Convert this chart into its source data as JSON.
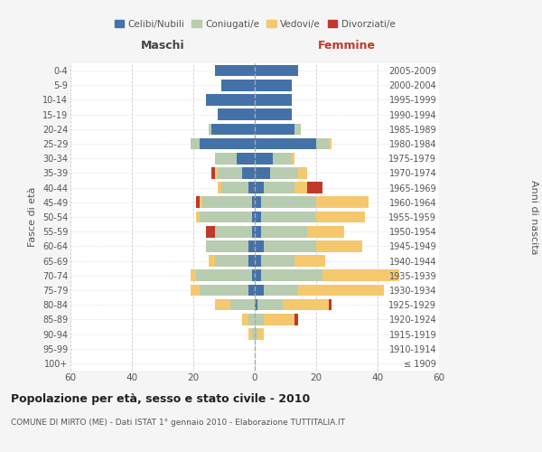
{
  "age_groups": [
    "100+",
    "95-99",
    "90-94",
    "85-89",
    "80-84",
    "75-79",
    "70-74",
    "65-69",
    "60-64",
    "55-59",
    "50-54",
    "45-49",
    "40-44",
    "35-39",
    "30-34",
    "25-29",
    "20-24",
    "15-19",
    "10-14",
    "5-9",
    "0-4"
  ],
  "birth_years": [
    "≤ 1909",
    "1910-1914",
    "1915-1919",
    "1920-1924",
    "1925-1929",
    "1930-1934",
    "1935-1939",
    "1940-1944",
    "1945-1949",
    "1950-1954",
    "1955-1959",
    "1960-1964",
    "1965-1969",
    "1970-1974",
    "1975-1979",
    "1980-1984",
    "1985-1989",
    "1990-1994",
    "1995-1999",
    "2000-2004",
    "2005-2009"
  ],
  "males": {
    "celibi": [
      0,
      0,
      0,
      0,
      0,
      2,
      1,
      2,
      2,
      1,
      1,
      1,
      2,
      4,
      6,
      18,
      14,
      12,
      16,
      11,
      13
    ],
    "coniugati": [
      0,
      0,
      1,
      2,
      8,
      16,
      18,
      11,
      14,
      12,
      17,
      16,
      9,
      8,
      7,
      3,
      1,
      0,
      0,
      0,
      0
    ],
    "vedovi": [
      0,
      0,
      1,
      2,
      5,
      3,
      2,
      2,
      0,
      0,
      1,
      1,
      1,
      1,
      0,
      0,
      0,
      0,
      0,
      0,
      0
    ],
    "divorziati": [
      0,
      0,
      0,
      0,
      0,
      0,
      0,
      0,
      0,
      3,
      0,
      1,
      0,
      1,
      0,
      0,
      0,
      0,
      0,
      0,
      0
    ]
  },
  "females": {
    "nubili": [
      0,
      0,
      0,
      0,
      1,
      3,
      2,
      2,
      3,
      2,
      2,
      2,
      3,
      5,
      6,
      20,
      13,
      12,
      12,
      12,
      14
    ],
    "coniugate": [
      0,
      0,
      1,
      3,
      8,
      11,
      20,
      11,
      17,
      15,
      18,
      18,
      10,
      9,
      6,
      4,
      2,
      0,
      0,
      0,
      0
    ],
    "vedove": [
      0,
      0,
      2,
      10,
      15,
      28,
      25,
      10,
      15,
      12,
      16,
      17,
      4,
      3,
      1,
      1,
      0,
      0,
      0,
      0,
      0
    ],
    "divorziate": [
      0,
      0,
      0,
      1,
      1,
      0,
      0,
      0,
      0,
      0,
      0,
      0,
      5,
      0,
      0,
      0,
      0,
      0,
      0,
      0,
      0
    ]
  },
  "colors": {
    "celibi": "#4472A8",
    "coniugati": "#B8CCB0",
    "vedovi": "#F5C86E",
    "divorziati": "#C0392B"
  },
  "xlim": [
    -60,
    60
  ],
  "xticks": [
    -60,
    -40,
    -20,
    0,
    20,
    40,
    60
  ],
  "xticklabels": [
    "60",
    "40",
    "20",
    "0",
    "20",
    "40",
    "60"
  ],
  "title_main": "Popolazione per età, sesso e stato civile - 2010",
  "title_sub": "COMUNE DI MIRTO (ME) - Dati ISTAT 1° gennaio 2010 - Elaborazione TUTTITALIA.IT",
  "label_maschi": "Maschi",
  "label_femmine": "Femmine",
  "label_y_left": "Fasce di età",
  "label_y_right": "Anni di nascita",
  "legend_labels": [
    "Celibi/Nubili",
    "Coniugati/e",
    "Vedovi/e",
    "Divorziati/e"
  ],
  "bg_color": "#f5f5f5",
  "plot_bg_color": "#ffffff"
}
